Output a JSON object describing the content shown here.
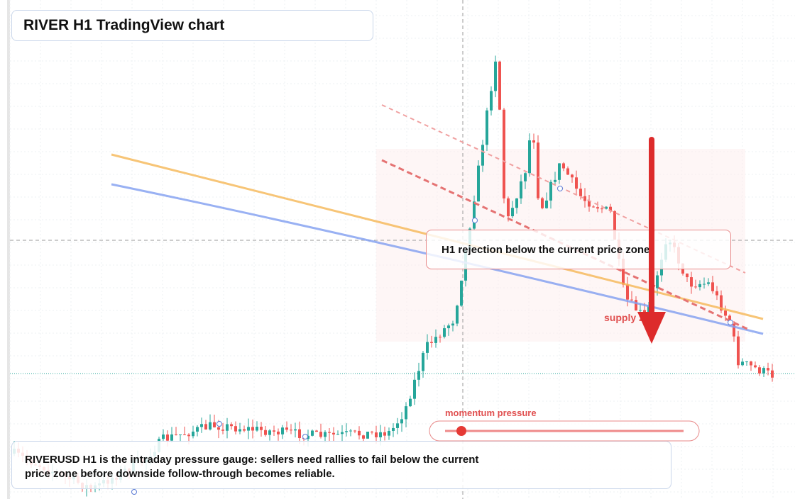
{
  "header": {
    "title": "RIVER H1 TradingView chart"
  },
  "annotations": {
    "rejection": "H1 rejection below the current price zone",
    "zone": "supply zone",
    "gauge": "momentum pressure"
  },
  "caption": "RIVERUSD H1 is the intraday pressure gauge: sellers need rallies to fail below the current price zone before downside follow-through becomes reliable."
}
